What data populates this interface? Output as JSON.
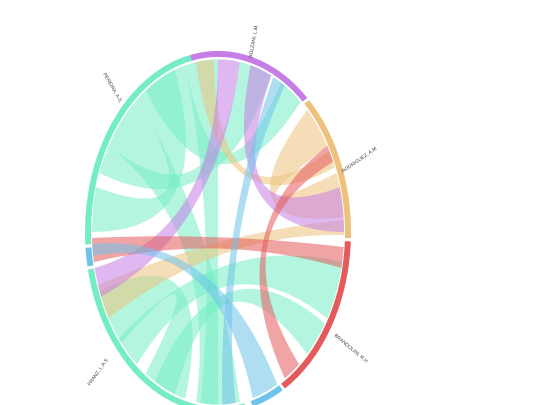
{
  "nodes": [
    {
      "label": "BOLZANI, L.M",
      "color": "#c77de6"
    },
    {
      "label": "RODRIGUEZ, A.M",
      "color": "#ecc27c"
    },
    {
      "label": "BRANDOLINI, R.H",
      "color": "#e55a5a"
    },
    {
      "label": "FRANZ, L.A.S",
      "color": "#74edc4"
    },
    {
      "label": "PEREIRA, A.S.",
      "color": "#74edc4"
    }
  ]
}
